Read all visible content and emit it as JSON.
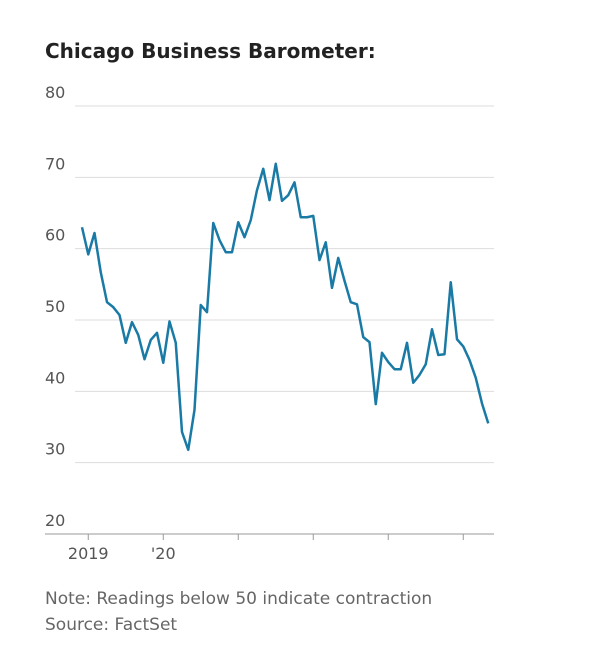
{
  "chart_data": {
    "type": "line",
    "title": "Chicago Business Barometer:",
    "note": "Note: Readings below 50 indicate contraction",
    "source": "Source: FactSet",
    "categories": [
      null,
      "2019",
      null,
      null,
      null,
      null,
      null,
      null,
      null,
      null,
      null,
      null,
      null,
      "'20",
      null,
      null,
      null,
      null,
      null,
      null,
      null,
      null,
      null,
      null,
      null,
      null,
      null,
      null,
      null,
      null,
      null,
      null,
      null,
      null,
      null,
      null,
      null,
      null,
      null,
      null,
      null,
      null,
      null,
      null,
      null,
      null,
      null,
      null,
      null,
      null,
      null,
      null,
      null,
      null,
      null,
      null,
      null,
      null,
      null,
      null,
      null,
      null,
      null,
      null,
      null,
      null
    ],
    "series": [
      {
        "name": "Chicago Business Barometer",
        "color": "#1a7aa6",
        "values": [
          63,
          59.2,
          62.2,
          56.7,
          52.5,
          51.8,
          50.7,
          46.8,
          49.7,
          47.9,
          44.5,
          47.2,
          48.2,
          44,
          49.8,
          46.8,
          34.3,
          31.8,
          37.4,
          52.1,
          51.1,
          63.6,
          61.2,
          59.5,
          59.5,
          63.7,
          61.6,
          64,
          68.2,
          71.2,
          66.8,
          71.9,
          66.7,
          67.5,
          69.3,
          64.4,
          64.4,
          64.6,
          58.4,
          60.9,
          54.5,
          58.7,
          55.5,
          52.5,
          52.2,
          47.6,
          46.9,
          38.2,
          45.4,
          44.1,
          43.1,
          43.1,
          46.8,
          41.2,
          42.3,
          43.8,
          48.7,
          45.1,
          45.2,
          55.3,
          47.3,
          46.3,
          44.4,
          41.9,
          38.3,
          35.5
        ]
      }
    ],
    "ylim": [
      20,
      80
    ],
    "yticks": [
      20,
      30,
      40,
      50,
      60,
      70,
      80
    ],
    "grid": true
  }
}
